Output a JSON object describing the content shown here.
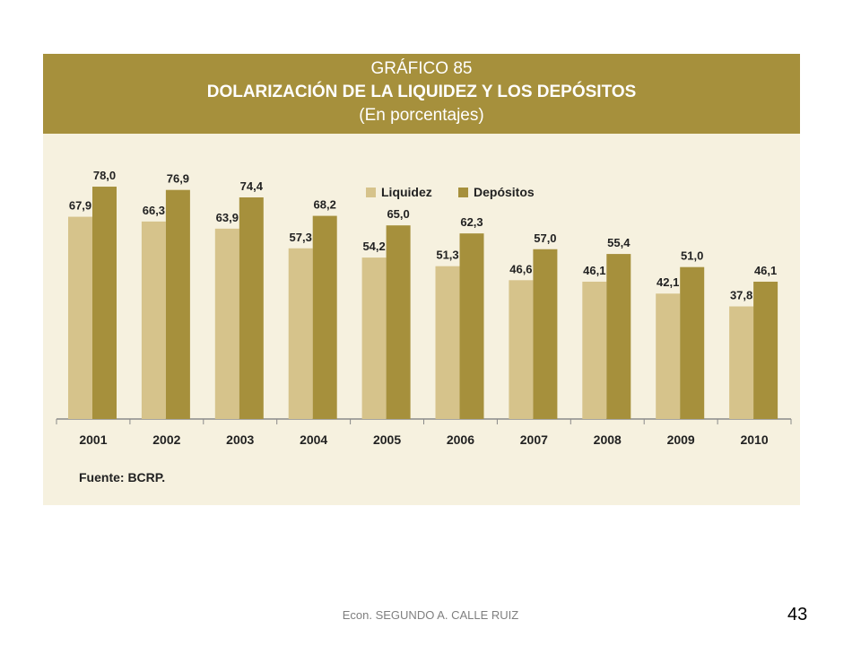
{
  "chart_data": {
    "type": "bar",
    "number": "GRÁFICO 85",
    "title": "DOLARIZACIÓN DE LA LIQUIDEZ Y LOS DEPÓSITOS",
    "subtitle": "(En porcentajes)",
    "categories": [
      "2001",
      "2002",
      "2003",
      "2004",
      "2005",
      "2006",
      "2007",
      "2008",
      "2009",
      "2010"
    ],
    "series": [
      {
        "name": "Liquidez",
        "color": "#d6c38b",
        "values": [
          67.9,
          66.3,
          63.9,
          57.3,
          54.2,
          51.3,
          46.6,
          46.1,
          42.1,
          37.8
        ],
        "labels": [
          "67,9",
          "66,3",
          "63,9",
          "57,3",
          "54,2",
          "51,3",
          "46,6",
          "46,1",
          "42,1",
          "37,8"
        ]
      },
      {
        "name": "Depósitos",
        "color": "#a6903c",
        "values": [
          78.0,
          76.9,
          74.4,
          68.2,
          65.0,
          62.3,
          57.0,
          55.4,
          51.0,
          46.1
        ],
        "labels": [
          "78,0",
          "76,9",
          "74,4",
          "68,2",
          "65,0",
          "62,3",
          "57,0",
          "55,4",
          "51,0",
          "46,1"
        ]
      }
    ],
    "ylim": [
      0,
      100
    ],
    "grid": false,
    "legend_position": "top-right",
    "source": "Fuente: BCRP.",
    "colors": {
      "header_bg": "#a6903c",
      "panel_bg": "#f6f1df",
      "text": "#222222"
    }
  },
  "footer": {
    "author": "Econ. SEGUNDO A. CALLE RUIZ",
    "slide_number": "43"
  }
}
